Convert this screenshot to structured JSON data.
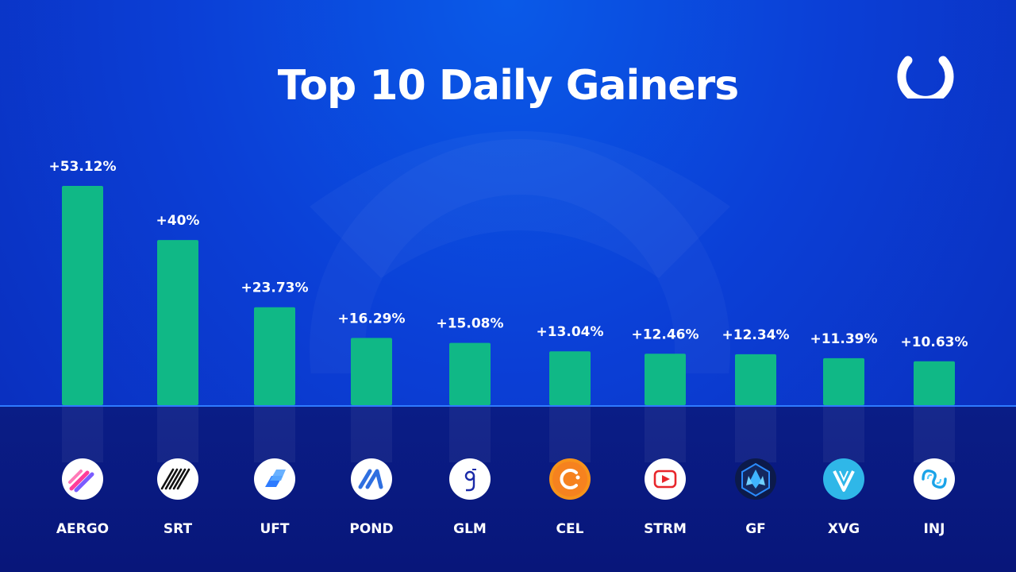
{
  "title": "Top 10 Daily Gainers",
  "colors": {
    "bar": "#10b886",
    "background": "#0b3fd6",
    "baseline": "#2f7bff",
    "panel": "#0a1d86"
  },
  "brand_logo_icon": "ring-logo-icon",
  "chart_data": {
    "type": "bar",
    "title": "Top 10 Daily Gainers",
    "xlabel": "",
    "ylabel": "",
    "grid": false,
    "ylim": [
      0,
      60
    ],
    "categories": [
      "AERGO",
      "SRT",
      "UFT",
      "POND",
      "GLM",
      "CEL",
      "STRM",
      "GF",
      "XVG",
      "INJ"
    ],
    "values": [
      53.12,
      40,
      23.73,
      16.29,
      15.08,
      13.04,
      12.46,
      12.34,
      11.39,
      10.63
    ],
    "value_labels": [
      "+53.12%",
      "+40%",
      "+23.73%",
      "+16.29%",
      "+15.08%",
      "+13.04%",
      "+12.46%",
      "+12.34%",
      "+11.39%",
      "+10.63%"
    ],
    "icons": [
      "aergo-coin-icon",
      "srt-coin-icon",
      "uft-coin-icon",
      "pond-coin-icon",
      "glm-coin-icon",
      "cel-coin-icon",
      "strm-coin-icon",
      "gf-coin-icon",
      "xvg-coin-icon",
      "inj-coin-icon"
    ]
  }
}
